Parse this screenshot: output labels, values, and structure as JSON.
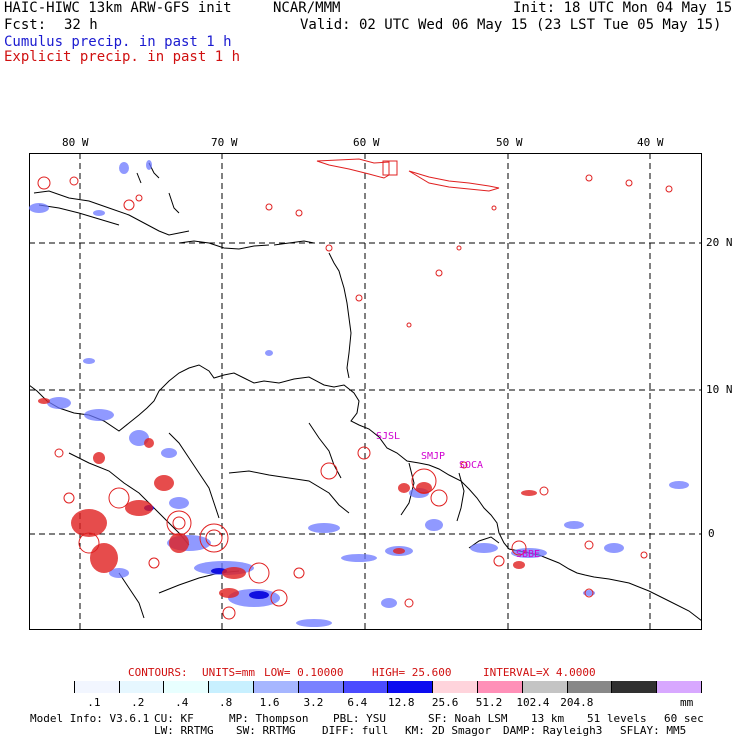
{
  "header": {
    "model": "HAIC-HIWC 13km ARW-GFS init",
    "org": "NCAR/MMM",
    "init": "Init: 18 UTC Mon 04 May 15",
    "fcst_label": "Fcst:",
    "fcst_value": "32 h",
    "valid": "Valid: 02 UTC Wed 06 May 15 (23 LST Tue 05 May 15)",
    "cumulus": "Cumulus precip. in past 1 h",
    "explicit": "Explicit precip. in past 1 h"
  },
  "map": {
    "lon_labels": [
      "80 W",
      "70 W",
      "60 W",
      "50 W",
      "40 W"
    ],
    "lat_labels": [
      "20 N",
      "10 N",
      "0"
    ],
    "stations": [
      "SJSL",
      "SMJP",
      "SOCA",
      "SBBE"
    ]
  },
  "contour_info": {
    "contours": "CONTOURS:",
    "units": "UNITS=mm",
    "low": "LOW=  0.10000",
    "high": "HIGH=  25.600",
    "interval": "INTERVAL=X  4.0000"
  },
  "colorbar": {
    "labels": [
      ".1",
      ".2",
      ".4",
      ".8",
      "1.6",
      "3.2",
      "6.4",
      "12.8",
      "25.6",
      "51.2",
      "102.4",
      "204.8"
    ],
    "unit": "mm",
    "colors": [
      "#ffffff",
      "#f2f6ff",
      "#e6f7ff",
      "#e8ffff",
      "#c8f0ff",
      "#a6b6ff",
      "#7a82ff",
      "#4b4bff",
      "#0c0cf0",
      "#ffd4dc",
      "#ff90b8",
      "#c4c4c4",
      "#888888",
      "#303030",
      "#d8a8ff"
    ]
  },
  "footer": {
    "line1": [
      "Model Info: V3.6.1",
      "CU: KF",
      "MP: Thompson",
      "PBL: YSU",
      "SF: Noah LSM",
      "13 km",
      "51 levels",
      "60 sec"
    ],
    "line2": [
      "LW: RRTMG",
      "SW: RRTMG",
      "DIFF: full",
      "KM: 2D Smagor",
      "DAMP: Rayleigh3",
      "SFLAY: MM5"
    ]
  }
}
